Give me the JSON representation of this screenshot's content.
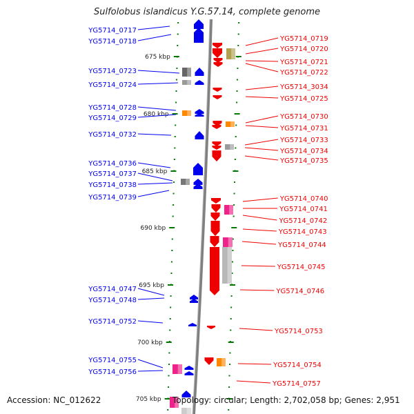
{
  "title": "Sulfolobus islandicus Y.G.57.14, complete genome",
  "accession": "Accession: NC_012622",
  "topology": "Topology: circular; Length: 2,702,058 bp; Genes: 2,951",
  "colors": {
    "forward": "#0000ee",
    "reverse": "#ee0000",
    "scale": "#007700",
    "backbone": "#808080",
    "pink": "#ee2288",
    "olive": "#b0a050",
    "orange": "#ff8800",
    "gray": "#9a9a9a"
  },
  "scale_marks": [
    {
      "kbp": 675,
      "label": "675 kbp"
    },
    {
      "kbp": 680,
      "label": "680 kbp"
    },
    {
      "kbp": 685,
      "label": "685 kbp"
    },
    {
      "kbp": 690,
      "label": "690 kbp"
    },
    {
      "kbp": 695,
      "label": "695 kbp"
    },
    {
      "kbp": 700,
      "label": "700 kbp"
    },
    {
      "kbp": 705,
      "label": "705 kbp"
    }
  ],
  "left_genes": [
    {
      "label": "YG5714_0717"
    },
    {
      "label": "YG5714_0718"
    },
    {
      "label": "YG5714_0723"
    },
    {
      "label": "YG5714_0724"
    },
    {
      "label": "YG5714_0728"
    },
    {
      "label": "YG5714_0729"
    },
    {
      "label": "YG5714_0732"
    },
    {
      "label": "YG5714_0736"
    },
    {
      "label": "YG5714_0737"
    },
    {
      "label": "YG5714_0738"
    },
    {
      "label": "YG5714_0739"
    },
    {
      "label": "YG5714_0747"
    },
    {
      "label": "YG5714_0748"
    },
    {
      "label": "YG5714_0752"
    },
    {
      "label": "YG5714_0755"
    },
    {
      "label": "YG5714_0756"
    }
  ],
  "right_genes": [
    {
      "label": "YG5714_0719"
    },
    {
      "label": "YG5714_0720"
    },
    {
      "label": "YG5714_0721"
    },
    {
      "label": "YG5714_0722"
    },
    {
      "label": "YG5714_3034"
    },
    {
      "label": "YG5714_0725"
    },
    {
      "label": "YG5714_0730"
    },
    {
      "label": "YG5714_0731"
    },
    {
      "label": "YG5714_0733"
    },
    {
      "label": "YG5714_0734"
    },
    {
      "label": "YG5714_0735"
    },
    {
      "label": "YG5714_0740"
    },
    {
      "label": "YG5714_0741"
    },
    {
      "label": "YG5714_0742"
    },
    {
      "label": "YG5714_0743"
    },
    {
      "label": "YG5714_0744"
    },
    {
      "label": "YG5714_0745"
    },
    {
      "label": "YG5714_0746"
    },
    {
      "label": "YG5714_0753"
    },
    {
      "label": "YG5714_0754"
    },
    {
      "label": "YG5714_0757"
    }
  ]
}
